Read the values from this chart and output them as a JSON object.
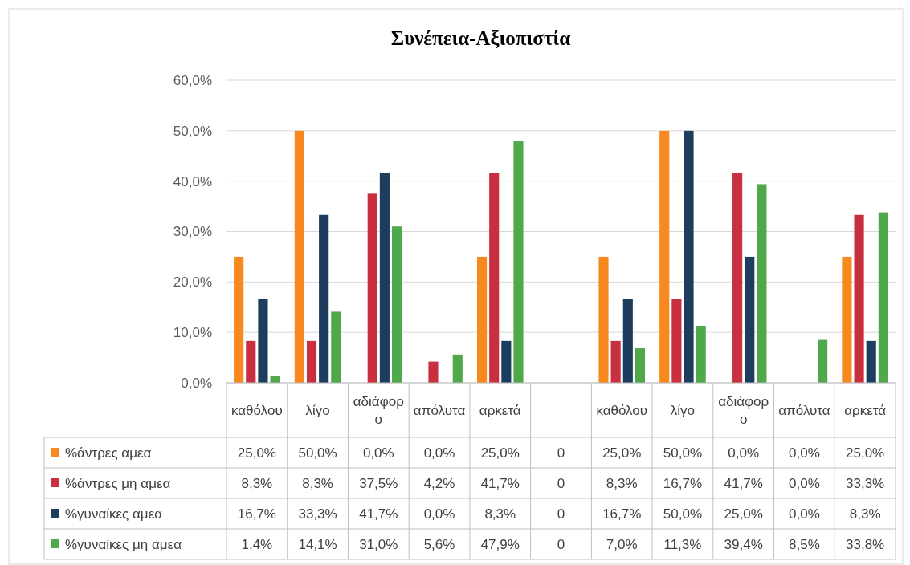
{
  "chart_data": {
    "type": "bar",
    "title": "Συνέπεια-Αξιοπιστία",
    "categories": [
      "καθόλου",
      "λίγο",
      "αδιάφορο",
      "απόλυτα",
      "αρκετά",
      null,
      "καθόλου",
      "λίγο",
      "αδιάφορο",
      "απόλυτα",
      "αρκετά"
    ],
    "series": [
      {
        "name": "%άντρες αμεα",
        "color": "#f7891e",
        "values": [
          25.0,
          50.0,
          0.0,
          0.0,
          25.0,
          0,
          25.0,
          50.0,
          0.0,
          0.0,
          25.0
        ],
        "value_labels": [
          "25,0%",
          "50,0%",
          "0,0%",
          "0,0%",
          "25,0%",
          "0",
          "25,0%",
          "50,0%",
          "0,0%",
          "0,0%",
          "25,0%"
        ]
      },
      {
        "name": "%άντρες μη αμεα",
        "color": "#c8303f",
        "values": [
          8.3,
          8.3,
          37.5,
          4.2,
          41.7,
          0,
          8.3,
          16.7,
          41.7,
          0.0,
          33.3
        ],
        "value_labels": [
          "8,3%",
          "8,3%",
          "37,5%",
          "4,2%",
          "41,7%",
          "0",
          "8,3%",
          "16,7%",
          "41,7%",
          "0,0%",
          "33,3%"
        ]
      },
      {
        "name": "%γυναίκες αμεα",
        "color": "#1d3d5e",
        "values": [
          16.7,
          33.3,
          41.7,
          0.0,
          8.3,
          0,
          16.7,
          50.0,
          25.0,
          0.0,
          8.3
        ],
        "value_labels": [
          "16,7%",
          "33,3%",
          "41,7%",
          "0,0%",
          "8,3%",
          "0",
          "16,7%",
          "50,0%",
          "25,0%",
          "0,0%",
          "8,3%"
        ]
      },
      {
        "name": "%γυναίκες μη αμεα",
        "color": "#4fa84a",
        "values": [
          1.4,
          14.1,
          31.0,
          5.6,
          47.9,
          0,
          7.0,
          11.3,
          39.4,
          8.5,
          33.8
        ],
        "value_labels": [
          "1,4%",
          "14,1%",
          "31,0%",
          "5,6%",
          "47,9%",
          "0",
          "7,0%",
          "11,3%",
          "39,4%",
          "8,5%",
          "33,8%"
        ]
      }
    ],
    "ylim": [
      0,
      60
    ],
    "yticks": [
      {
        "value": 0,
        "label": "0,0%"
      },
      {
        "value": 10,
        "label": "10,0%"
      },
      {
        "value": 20,
        "label": "20,0%"
      },
      {
        "value": 30,
        "label": "30,0%"
      },
      {
        "value": 40,
        "label": "40,0%"
      },
      {
        "value": 50,
        "label": "50,0%"
      },
      {
        "value": 60,
        "label": "60,0%"
      }
    ],
    "grid": "y",
    "legend": "bottom"
  }
}
